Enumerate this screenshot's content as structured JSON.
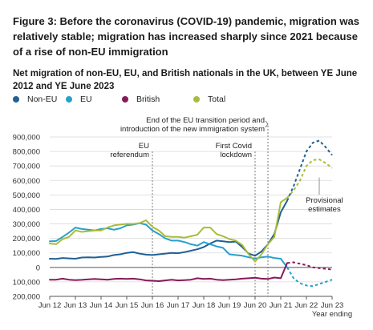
{
  "figure": {
    "title": "Figure 3: Before the coronavirus (COVID-19) pandemic, migration was relatively stable; migration has increased sharply since 2021 because of a rise of non-EU immigration",
    "subtitle": "Net migration of non-EU, EU, and British nationals in the UK, between YE June 2012 and YE June 2023"
  },
  "chart_data": {
    "type": "line",
    "title": "",
    "xlabel": "Year ending",
    "ylabel": "",
    "ylim": [
      -200000,
      900000
    ],
    "yticks": [
      -200000,
      -100000,
      0,
      100000,
      200000,
      300000,
      400000,
      500000,
      600000,
      700000,
      800000,
      900000
    ],
    "ytick_labels": [
      "200,000",
      "100,000",
      "0",
      "100,000",
      "200,000",
      "300,000",
      "400,000",
      "500,000",
      "600,000",
      "700,000",
      "800,000",
      "900,000"
    ],
    "xlim": [
      2012.5,
      2023.5
    ],
    "xticks": [
      2012.5,
      2013.5,
      2014.5,
      2015.5,
      2016.5,
      2017.5,
      2018.5,
      2019.5,
      2020.5,
      2021.5,
      2022.5,
      2023.5
    ],
    "xtick_labels": [
      "Jun 12",
      "Jun 13",
      "Jun 14",
      "Jun 15",
      "Jun 16",
      "Jun 17",
      "Jun 18",
      "Jun 19",
      "Jun 20",
      "Jun 21",
      "Jun 22",
      "Jun 23"
    ],
    "grid": true,
    "legend_position": "top",
    "provisional_from": 2021.75,
    "series": [
      {
        "name": "Non-EU",
        "color": "#206095",
        "x": [
          2012.5,
          2012.75,
          2013,
          2013.25,
          2013.5,
          2013.75,
          2014,
          2014.25,
          2014.5,
          2014.75,
          2015,
          2015.25,
          2015.5,
          2015.75,
          2016,
          2016.25,
          2016.5,
          2016.75,
          2017,
          2017.25,
          2017.5,
          2017.75,
          2018,
          2018.25,
          2018.5,
          2018.75,
          2019,
          2019.25,
          2019.5,
          2019.75,
          2020,
          2020.25,
          2020.5,
          2020.75,
          2021,
          2021.25,
          2021.5,
          2021.75,
          2022,
          2022.25,
          2022.5,
          2022.75,
          2023,
          2023.25,
          2023.5
        ],
        "values": [
          60000,
          58000,
          65000,
          62000,
          60000,
          68000,
          70000,
          68000,
          72000,
          75000,
          85000,
          90000,
          100000,
          105000,
          95000,
          88000,
          85000,
          90000,
          95000,
          100000,
          98000,
          105000,
          115000,
          125000,
          140000,
          165000,
          185000,
          180000,
          175000,
          178000,
          140000,
          95000,
          80000,
          110000,
          160000,
          230000,
          380000,
          460000,
          560000,
          680000,
          800000,
          860000,
          875000,
          830000,
          775000
        ]
      },
      {
        "name": "EU",
        "color": "#27a0cc",
        "x": [
          2012.5,
          2012.75,
          2013,
          2013.25,
          2013.5,
          2013.75,
          2014,
          2014.25,
          2014.5,
          2014.75,
          2015,
          2015.25,
          2015.5,
          2015.75,
          2016,
          2016.25,
          2016.5,
          2016.75,
          2017,
          2017.25,
          2017.5,
          2017.75,
          2018,
          2018.25,
          2018.5,
          2018.75,
          2019,
          2019.25,
          2019.5,
          2019.75,
          2020,
          2020.25,
          2020.5,
          2020.75,
          2021,
          2021.25,
          2021.5,
          2021.75,
          2022,
          2022.25,
          2022.5,
          2022.75,
          2023,
          2023.25,
          2023.5
        ],
        "values": [
          180000,
          182000,
          210000,
          240000,
          275000,
          265000,
          260000,
          255000,
          265000,
          270000,
          260000,
          270000,
          290000,
          295000,
          305000,
          295000,
          255000,
          230000,
          200000,
          185000,
          185000,
          175000,
          160000,
          150000,
          175000,
          160000,
          145000,
          135000,
          90000,
          85000,
          80000,
          70000,
          60000,
          70000,
          75000,
          65000,
          60000,
          0,
          -75000,
          -110000,
          -125000,
          -130000,
          -115000,
          -100000,
          -85000
        ]
      },
      {
        "name": "British",
        "color": "#871a5b",
        "x": [
          2012.5,
          2012.75,
          2013,
          2013.25,
          2013.5,
          2013.75,
          2014,
          2014.25,
          2014.5,
          2014.75,
          2015,
          2015.25,
          2015.5,
          2015.75,
          2016,
          2016.25,
          2016.5,
          2016.75,
          2017,
          2017.25,
          2017.5,
          2017.75,
          2018,
          2018.25,
          2018.5,
          2018.75,
          2019,
          2019.25,
          2019.5,
          2019.75,
          2020,
          2020.25,
          2020.5,
          2020.75,
          2021,
          2021.25,
          2021.5,
          2021.75,
          2022,
          2022.25,
          2022.5,
          2022.75,
          2023,
          2023.25,
          2023.5
        ],
        "values": [
          -85000,
          -85000,
          -78000,
          -85000,
          -88000,
          -86000,
          -83000,
          -80000,
          -82000,
          -85000,
          -80000,
          -78000,
          -80000,
          -78000,
          -82000,
          -90000,
          -92000,
          -95000,
          -90000,
          -85000,
          -90000,
          -88000,
          -85000,
          -75000,
          -80000,
          -78000,
          -85000,
          -88000,
          -85000,
          -82000,
          -78000,
          -75000,
          -72000,
          -78000,
          -80000,
          -70000,
          -75000,
          30000,
          35000,
          25000,
          15000,
          0,
          -5000,
          -10000,
          -15000
        ]
      },
      {
        "name": "Total",
        "color": "#a8bd3a",
        "x": [
          2012.5,
          2012.75,
          2013,
          2013.25,
          2013.5,
          2013.75,
          2014,
          2014.25,
          2014.5,
          2014.75,
          2015,
          2015.25,
          2015.5,
          2015.75,
          2016,
          2016.25,
          2016.5,
          2016.75,
          2017,
          2017.25,
          2017.5,
          2017.75,
          2018,
          2018.25,
          2018.5,
          2018.75,
          2019,
          2019.25,
          2019.5,
          2019.75,
          2020,
          2020.25,
          2020.5,
          2020.75,
          2021,
          2021.25,
          2021.5,
          2021.75,
          2022,
          2022.25,
          2022.5,
          2022.75,
          2023,
          2023.25,
          2023.5
        ],
        "values": [
          165000,
          160000,
          195000,
          210000,
          255000,
          245000,
          250000,
          255000,
          255000,
          275000,
          290000,
          295000,
          300000,
          300000,
          305000,
          325000,
          280000,
          255000,
          215000,
          210000,
          210000,
          205000,
          215000,
          225000,
          275000,
          275000,
          230000,
          215000,
          195000,
          185000,
          155000,
          90000,
          40000,
          90000,
          160000,
          210000,
          450000,
          480000,
          530000,
          600000,
          700000,
          740000,
          745000,
          720000,
          685000
        ]
      }
    ],
    "annotations": [
      {
        "text": "EU",
        "x": 2016.5
      },
      {
        "text": "referendum",
        "x": 2016.5
      },
      {
        "text": "First Covid",
        "x": 2020.5
      },
      {
        "text": "lockdown",
        "x": 2020.5
      },
      {
        "text": "End of the EU transition period and",
        "x": 2021.0
      },
      {
        "text": "introduction of the new immigration system",
        "x": 2021.0
      },
      {
        "text": "Provisional",
        "x": 2023.0
      },
      {
        "text": "estimates",
        "x": 2023.0
      }
    ],
    "vlines": [
      2016.5,
      2020.5,
      2021.0
    ]
  }
}
